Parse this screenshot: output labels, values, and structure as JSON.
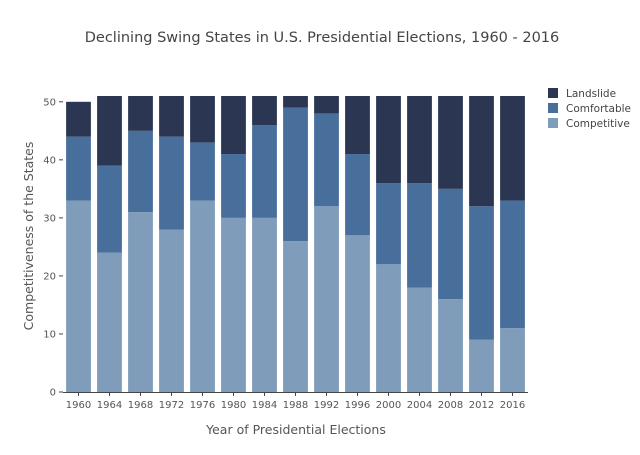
{
  "chart_data": {
    "type": "bar",
    "stacked": true,
    "title": "Declining Swing States in U.S. Presidential Elections, 1960 - 2016",
    "xlabel": "Year of Presidential Elections",
    "ylabel": "Competitiveness of the States",
    "ylim": [
      0,
      51
    ],
    "yticks": [
      0,
      10,
      20,
      30,
      40,
      50
    ],
    "categories": [
      "1960",
      "1964",
      "1968",
      "1972",
      "1976",
      "1980",
      "1984",
      "1988",
      "1992",
      "1996",
      "2000",
      "2004",
      "2008",
      "2012",
      "2016"
    ],
    "series": [
      {
        "name": "Competitive",
        "color": "#7f9cba",
        "values": [
          33,
          24,
          31,
          28,
          33,
          30,
          30,
          26,
          32,
          27,
          22,
          18,
          16,
          9,
          11
        ]
      },
      {
        "name": "Comfortable",
        "color": "#486f9c",
        "values": [
          11,
          15,
          14,
          16,
          10,
          11,
          16,
          23,
          16,
          14,
          14,
          18,
          19,
          23,
          22
        ]
      },
      {
        "name": "Landslide",
        "color": "#2b3652",
        "values": [
          6,
          12,
          6,
          7,
          8,
          10,
          5,
          2,
          3,
          10,
          15,
          15,
          16,
          19,
          18
        ]
      }
    ],
    "legend": {
      "placement": "top-right",
      "order": [
        "Landslide",
        "Comfortable",
        "Competitive"
      ]
    },
    "grid": false
  }
}
